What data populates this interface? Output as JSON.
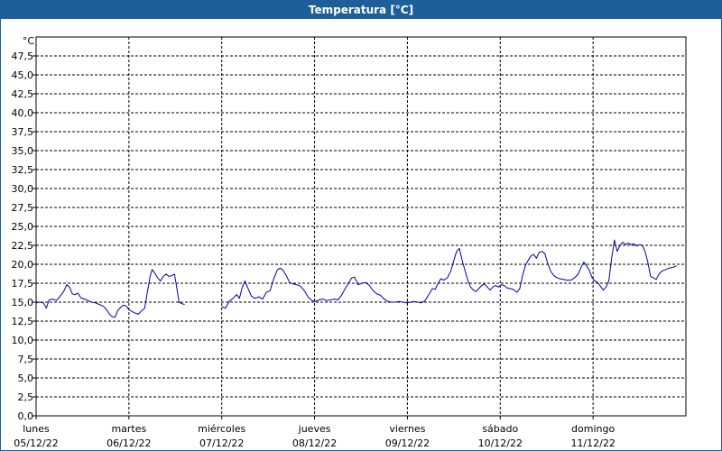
{
  "window": {
    "title": "Temperatura [°C]"
  },
  "colors": {
    "title_bar": "#1f5f99",
    "series_line": "#0000aa",
    "grid": "#000000"
  },
  "chart_data": {
    "type": "line",
    "title": "Temperatura [°C]",
    "ylabel": "°C",
    "ylim": [
      0,
      50
    ],
    "y_ticks": [
      "0,0",
      "2,5",
      "5,0",
      "7,5",
      "10,0",
      "12,5",
      "15,0",
      "17,5",
      "20,0",
      "22,5",
      "25,0",
      "27,5",
      "30,0",
      "32,5",
      "35,0",
      "37,5",
      "40,0",
      "42,5",
      "45,0",
      "47,5"
    ],
    "x_range_days": [
      0,
      7
    ],
    "x_day_labels": [
      {
        "day": "lunes",
        "date": "05/12/22"
      },
      {
        "day": "martes",
        "date": "06/12/22"
      },
      {
        "day": "miércoles",
        "date": "07/12/22"
      },
      {
        "day": "jueves",
        "date": "08/12/22"
      },
      {
        "day": "viernes",
        "date": "09/12/22"
      },
      {
        "day": "sábado",
        "date": "10/12/22"
      },
      {
        "day": "domingo",
        "date": "11/12/22"
      }
    ],
    "grid": true,
    "series": [
      {
        "segments": [
          [
            [
              0.0,
              14.9
            ],
            [
              0.04,
              15.0
            ],
            [
              0.08,
              14.9
            ],
            [
              0.11,
              14.2
            ],
            [
              0.14,
              15.3
            ],
            [
              0.18,
              15.4
            ],
            [
              0.22,
              15.2
            ],
            [
              0.26,
              15.8
            ],
            [
              0.3,
              16.5
            ],
            [
              0.33,
              17.3
            ],
            [
              0.36,
              17.0
            ],
            [
              0.39,
              16.1
            ],
            [
              0.42,
              16.0
            ],
            [
              0.45,
              16.2
            ],
            [
              0.48,
              15.6
            ],
            [
              0.52,
              15.4
            ],
            [
              0.56,
              15.2
            ],
            [
              0.6,
              15.0
            ],
            [
              0.64,
              14.9
            ],
            [
              0.68,
              14.7
            ],
            [
              0.72,
              14.5
            ],
            [
              0.76,
              14.0
            ],
            [
              0.79,
              13.4
            ],
            [
              0.82,
              13.1
            ],
            [
              0.85,
              13.0
            ],
            [
              0.88,
              13.9
            ],
            [
              0.91,
              14.3
            ],
            [
              0.94,
              14.6
            ],
            [
              0.97,
              14.5
            ],
            [
              1.0,
              14.0
            ],
            [
              1.03,
              13.8
            ],
            [
              1.06,
              13.6
            ],
            [
              1.1,
              13.4
            ],
            [
              1.14,
              13.9
            ],
            [
              1.17,
              14.2
            ],
            [
              1.2,
              16.4
            ],
            [
              1.23,
              18.5
            ],
            [
              1.25,
              19.3
            ],
            [
              1.28,
              18.8
            ],
            [
              1.31,
              18.2
            ],
            [
              1.34,
              17.8
            ],
            [
              1.37,
              18.4
            ],
            [
              1.4,
              18.7
            ],
            [
              1.43,
              18.4
            ],
            [
              1.46,
              18.5
            ],
            [
              1.49,
              18.7
            ],
            [
              1.52,
              16.6
            ],
            [
              1.54,
              15.0
            ],
            [
              1.57,
              14.8
            ],
            [
              1.6,
              14.7
            ]
          ],
          [
            [
              2.0,
              14.4
            ],
            [
              2.04,
              14.2
            ],
            [
              2.08,
              15.1
            ],
            [
              2.12,
              15.5
            ],
            [
              2.16,
              16.0
            ],
            [
              2.19,
              15.5
            ],
            [
              2.22,
              16.9
            ],
            [
              2.25,
              17.8
            ],
            [
              2.28,
              16.9
            ],
            [
              2.32,
              15.8
            ],
            [
              2.36,
              15.5
            ],
            [
              2.4,
              15.7
            ],
            [
              2.44,
              15.4
            ],
            [
              2.48,
              16.3
            ],
            [
              2.52,
              16.5
            ],
            [
              2.56,
              18.1
            ],
            [
              2.6,
              19.3
            ],
            [
              2.63,
              19.5
            ],
            [
              2.66,
              19.2
            ],
            [
              2.7,
              18.4
            ],
            [
              2.73,
              17.6
            ],
            [
              2.77,
              17.4
            ],
            [
              2.81,
              17.3
            ],
            [
              2.85,
              17.1
            ],
            [
              2.89,
              16.5
            ],
            [
              2.93,
              15.7
            ],
            [
              2.97,
              15.2
            ],
            [
              3.01,
              15.1
            ],
            [
              3.05,
              15.3
            ],
            [
              3.09,
              15.4
            ],
            [
              3.13,
              15.2
            ],
            [
              3.17,
              15.3
            ],
            [
              3.21,
              15.4
            ],
            [
              3.25,
              15.3
            ],
            [
              3.29,
              15.9
            ],
            [
              3.33,
              16.8
            ],
            [
              3.37,
              17.6
            ],
            [
              3.4,
              18.2
            ],
            [
              3.43,
              18.3
            ],
            [
              3.47,
              17.3
            ],
            [
              3.51,
              17.5
            ],
            [
              3.55,
              17.6
            ],
            [
              3.59,
              17.2
            ],
            [
              3.63,
              16.5
            ],
            [
              3.67,
              16.1
            ],
            [
              3.71,
              15.9
            ],
            [
              3.75,
              15.4
            ],
            [
              3.79,
              15.1
            ],
            [
              3.83,
              15.0
            ],
            [
              3.87,
              15.0
            ],
            [
              3.91,
              15.1
            ],
            [
              3.95,
              15.0
            ],
            [
              3.99,
              14.9
            ],
            [
              4.03,
              15.0
            ],
            [
              4.07,
              15.1
            ],
            [
              4.11,
              15.0
            ],
            [
              4.15,
              14.9
            ],
            [
              4.19,
              15.2
            ],
            [
              4.23,
              16.0
            ],
            [
              4.27,
              16.8
            ],
            [
              4.3,
              16.7
            ],
            [
              4.33,
              17.5
            ],
            [
              4.36,
              18.1
            ],
            [
              4.39,
              17.9
            ],
            [
              4.43,
              18.2
            ],
            [
              4.47,
              19.2
            ],
            [
              4.5,
              20.5
            ],
            [
              4.53,
              21.7
            ],
            [
              4.56,
              22.1
            ],
            [
              4.59,
              20.5
            ],
            [
              4.62,
              19.2
            ],
            [
              4.65,
              17.9
            ],
            [
              4.68,
              17.0
            ],
            [
              4.71,
              16.6
            ],
            [
              4.74,
              16.4
            ],
            [
              4.77,
              16.8
            ],
            [
              4.8,
              17.2
            ],
            [
              4.83,
              17.4
            ],
            [
              4.86,
              17.0
            ],
            [
              4.89,
              16.6
            ],
            [
              4.92,
              17.0
            ],
            [
              4.95,
              17.2
            ],
            [
              4.98,
              17.0
            ],
            [
              5.01,
              17.3
            ],
            [
              5.04,
              17.2
            ],
            [
              5.07,
              16.9
            ],
            [
              5.1,
              16.8
            ],
            [
              5.14,
              16.7
            ],
            [
              5.18,
              16.3
            ],
            [
              5.21,
              16.8
            ],
            [
              5.24,
              18.5
            ],
            [
              5.27,
              19.8
            ],
            [
              5.3,
              20.5
            ],
            [
              5.33,
              21.1
            ],
            [
              5.36,
              21.3
            ],
            [
              5.39,
              20.8
            ],
            [
              5.42,
              21.6
            ],
            [
              5.45,
              21.7
            ],
            [
              5.48,
              21.4
            ],
            [
              5.51,
              20.2
            ],
            [
              5.54,
              19.2
            ],
            [
              5.57,
              18.6
            ],
            [
              5.6,
              18.3
            ],
            [
              5.64,
              18.1
            ],
            [
              5.68,
              18.0
            ],
            [
              5.72,
              17.9
            ],
            [
              5.76,
              17.9
            ],
            [
              5.8,
              18.2
            ],
            [
              5.84,
              18.7
            ],
            [
              5.87,
              19.6
            ],
            [
              5.9,
              20.3
            ],
            [
              5.93,
              19.8
            ],
            [
              5.96,
              19.2
            ],
            [
              5.99,
              18.2
            ],
            [
              6.02,
              17.8
            ],
            [
              6.05,
              17.6
            ],
            [
              6.08,
              17.1
            ],
            [
              6.11,
              16.6
            ],
            [
              6.14,
              17.0
            ],
            [
              6.17,
              17.8
            ],
            [
              6.2,
              20.8
            ],
            [
              6.23,
              23.2
            ],
            [
              6.26,
              21.7
            ],
            [
              6.29,
              22.5
            ],
            [
              6.32,
              22.9
            ],
            [
              6.35,
              22.6
            ],
            [
              6.38,
              22.8
            ],
            [
              6.41,
              22.6
            ],
            [
              6.44,
              22.7
            ],
            [
              6.47,
              22.4
            ],
            [
              6.5,
              22.6
            ],
            [
              6.53,
              22.5
            ],
            [
              6.56,
              21.7
            ],
            [
              6.59,
              20.3
            ],
            [
              6.62,
              18.4
            ],
            [
              6.65,
              18.2
            ],
            [
              6.68,
              18.0
            ],
            [
              6.71,
              18.7
            ],
            [
              6.74,
              19.1
            ],
            [
              6.78,
              19.3
            ],
            [
              6.82,
              19.5
            ],
            [
              6.86,
              19.6
            ],
            [
              6.9,
              19.8
            ]
          ]
        ]
      }
    ]
  }
}
